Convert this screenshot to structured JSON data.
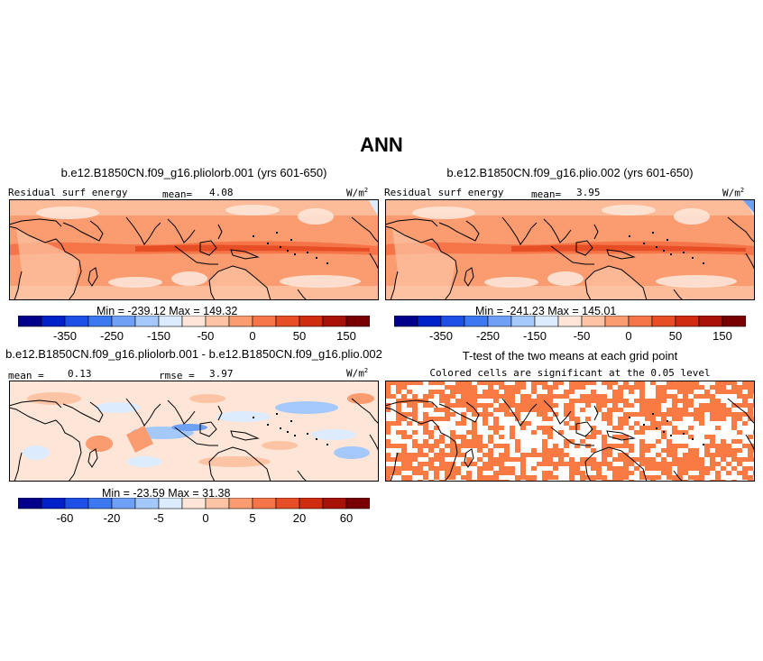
{
  "figure": {
    "title": "ANN",
    "panels": [
      {
        "id": "p1",
        "title": "b.e12.B1850CN.f09_g16.pliolorb.001 (yrs 601-650)",
        "left_label": "Residual surf energy",
        "mean_label": "mean=",
        "mean_value": "4.08",
        "units": "W/m",
        "units_sup": "2",
        "min_max": "Min = -239.12  Max = 149.32"
      },
      {
        "id": "p2",
        "title": "b.e12.B1850CN.f09_g16.plio.002 (yrs 601-650)",
        "left_label": "Residual surf energy",
        "mean_label": "mean=",
        "mean_value": "3.95",
        "units": "W/m",
        "units_sup": "2",
        "min_max": "Min = -241.23  Max = 145.01"
      },
      {
        "id": "p3",
        "title": "b.e12.B1850CN.f09_g16.pliolorb.001 - b.e12.B1850CN.f09_g16.plio.002",
        "mean_label": "mean =",
        "mean_value": "0.13",
        "rmse_label": "rmse =",
        "rmse_value": "3.97",
        "units": "W/m",
        "units_sup": "2",
        "min_max": "Min = -23.59  Max =  31.38"
      },
      {
        "id": "p4",
        "title": "T-test of the two means at each grid point",
        "subtitle": "Colored cells are significant at the 0.05 level"
      }
    ],
    "colorbar_main": {
      "colors": [
        "#00008b",
        "#0020c8",
        "#1e50e8",
        "#3c78f0",
        "#6ea0f5",
        "#a5c8fa",
        "#dcebfd",
        "#fde6d8",
        "#fcc4a4",
        "#fa9b70",
        "#f57548",
        "#e84e26",
        "#d02c10",
        "#a81208",
        "#780000"
      ],
      "tick_labels": [
        "-350",
        "-250",
        "-150",
        "-50",
        "0",
        "50",
        "150"
      ]
    },
    "colorbar_diff": {
      "colors": [
        "#00008b",
        "#0020c8",
        "#1e50e8",
        "#3c78f0",
        "#6ea0f5",
        "#a5c8fa",
        "#dcebfd",
        "#fde6d8",
        "#fcc4a4",
        "#fa9b70",
        "#f57548",
        "#e84e26",
        "#d02c10",
        "#a81208",
        "#780000"
      ],
      "tick_labels": [
        "-60",
        "-20",
        "-5",
        "0",
        "5",
        "20",
        "60"
      ]
    },
    "map_colors": {
      "bg_main": "#fa9b70",
      "band_main": "#f57548",
      "core_main": "#e84e26",
      "light_main": "#fcc4a4",
      "pale_main": "#fde6d8",
      "blue_light": "#dcebfd",
      "bg_diff": "#fde6d8",
      "diff_blue1": "#dcebfd",
      "diff_blue2": "#a5c8fa",
      "diff_blue3": "#6ea0f5",
      "diff_red1": "#fcc4a4",
      "diff_red2": "#fa9b70",
      "signif": "#fa7a44",
      "coast": "#000000"
    }
  }
}
